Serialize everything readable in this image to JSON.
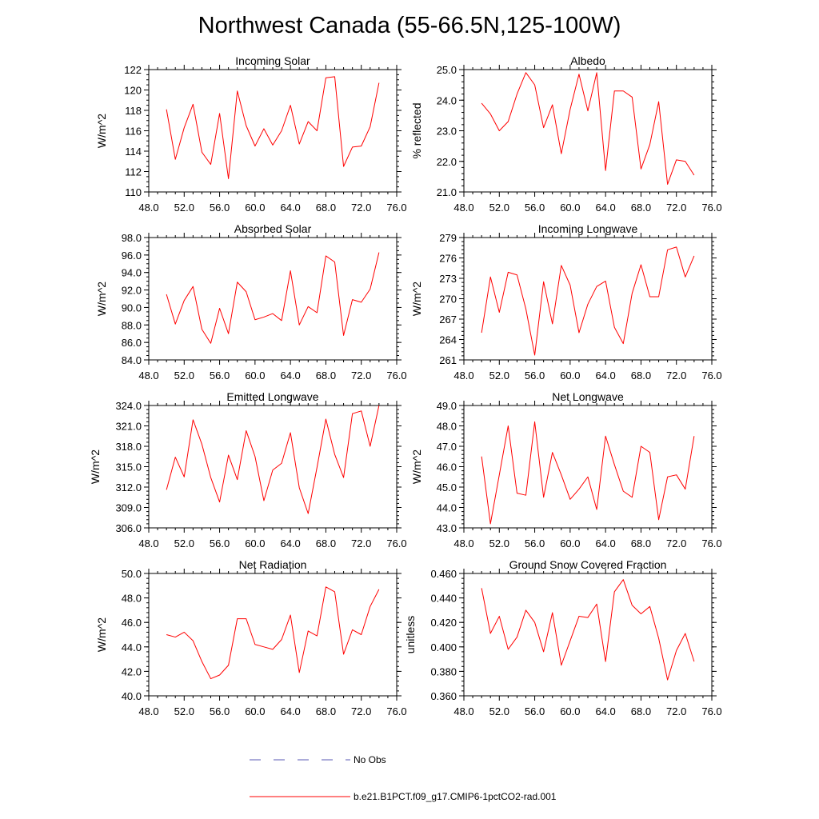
{
  "figure": {
    "title": "Northwest Canada (55-66.5N,125-100W)"
  },
  "legend": {
    "items": [
      {
        "label": "No Obs",
        "color": "#5a5ab4",
        "dash": "dashed"
      },
      {
        "label": "b.e21.B1PCT.f09_g17.CMIP6-1pctCO2-rad.001",
        "color": "#ff0000",
        "dash": "solid"
      }
    ]
  },
  "chart_data": [
    {
      "type": "line",
      "title": "Incoming Solar",
      "ylabel": "W/m^2",
      "xlim": [
        48,
        76
      ],
      "ylim": [
        110,
        122
      ],
      "xticks": [
        "48.0",
        "52.0",
        "56.0",
        "60.0",
        "64.0",
        "68.0",
        "72.0",
        "76.0"
      ],
      "yticks": [
        110,
        112,
        114,
        116,
        118,
        120,
        122
      ],
      "ytick_labels": [
        "110",
        "112",
        "114",
        "116",
        "118",
        "120",
        "122"
      ],
      "ytick_step": 0.5,
      "x": [
        50,
        51,
        52,
        53,
        54,
        55,
        56,
        57,
        58,
        59,
        60,
        61,
        62,
        63,
        64,
        65,
        66,
        67,
        68,
        69,
        70,
        71,
        72,
        73,
        74
      ],
      "series": [
        {
          "name": "b.e21.B1PCT.f09_g17.CMIP6-1pctCO2-rad.001",
          "color": "#ff0000",
          "values": [
            118.1,
            113.2,
            116.3,
            118.6,
            113.9,
            112.7,
            117.7,
            111.3,
            119.9,
            116.5,
            114.5,
            116.2,
            114.6,
            116.0,
            118.5,
            114.7,
            116.9,
            116.0,
            121.2,
            121.3,
            112.5,
            114.4,
            114.5,
            116.4,
            120.7
          ]
        }
      ]
    },
    {
      "type": "line",
      "title": "Albedo",
      "ylabel": "% reflected",
      "xlim": [
        48,
        76
      ],
      "ylim": [
        21.0,
        25.0
      ],
      "xticks": [
        "48.0",
        "52.0",
        "56.0",
        "60.0",
        "64.0",
        "68.0",
        "72.0",
        "76.0"
      ],
      "yticks": [
        21.0,
        22.0,
        23.0,
        24.0,
        25.0
      ],
      "ytick_labels": [
        "21.0",
        "22.0",
        "23.0",
        "24.0",
        "25.0"
      ],
      "ytick_step": 0.2,
      "x": [
        50,
        51,
        52,
        53,
        54,
        55,
        56,
        57,
        58,
        59,
        60,
        61,
        62,
        63,
        64,
        65,
        66,
        67,
        68,
        69,
        70,
        71,
        72,
        73,
        74
      ],
      "series": [
        {
          "name": "b.e21.B1PCT.f09_g17.CMIP6-1pctCO2-rad.001",
          "color": "#ff0000",
          "values": [
            23.9,
            23.55,
            23.0,
            23.3,
            24.2,
            24.9,
            24.5,
            23.1,
            23.85,
            22.25,
            23.7,
            24.85,
            23.65,
            24.9,
            21.7,
            24.3,
            24.3,
            24.1,
            21.75,
            22.55,
            23.95,
            21.25,
            22.05,
            22.0,
            21.55
          ]
        }
      ]
    },
    {
      "type": "line",
      "title": "Absorbed Solar",
      "ylabel": "W/m^2",
      "xlim": [
        48,
        76
      ],
      "ylim": [
        84.0,
        98.0
      ],
      "xticks": [
        "48.0",
        "52.0",
        "56.0",
        "60.0",
        "64.0",
        "68.0",
        "72.0",
        "76.0"
      ],
      "yticks": [
        84.0,
        86.0,
        88.0,
        90.0,
        92.0,
        94.0,
        96.0,
        98.0
      ],
      "ytick_labels": [
        "84.0",
        "86.0",
        "88.0",
        "90.0",
        "92.0",
        "94.0",
        "96.0",
        "98.0"
      ],
      "ytick_step": 0.5,
      "x": [
        50,
        51,
        52,
        53,
        54,
        55,
        56,
        57,
        58,
        59,
        60,
        61,
        62,
        63,
        64,
        65,
        66,
        67,
        68,
        69,
        70,
        71,
        72,
        73,
        74
      ],
      "series": [
        {
          "name": "b.e21.B1PCT.f09_g17.CMIP6-1pctCO2-rad.001",
          "color": "#ff0000",
          "values": [
            91.5,
            88.1,
            90.8,
            92.4,
            87.5,
            85.9,
            89.9,
            87.0,
            92.9,
            91.8,
            88.6,
            88.9,
            89.3,
            88.5,
            94.2,
            88.0,
            90.1,
            89.4,
            95.9,
            95.2,
            86.8,
            90.9,
            90.6,
            92.1,
            96.3
          ]
        }
      ]
    },
    {
      "type": "line",
      "title": "Incoming Longwave",
      "ylabel": "W/m^2",
      "xlim": [
        48,
        76
      ],
      "ylim": [
        261,
        279
      ],
      "xticks": [
        "48.0",
        "52.0",
        "56.0",
        "60.0",
        "64.0",
        "68.0",
        "72.0",
        "76.0"
      ],
      "yticks": [
        261,
        264,
        267,
        270,
        273,
        276,
        279
      ],
      "ytick_labels": [
        "261",
        "264",
        "267",
        "270",
        "273",
        "276",
        "279"
      ],
      "ytick_step": 0.6,
      "x": [
        50,
        51,
        52,
        53,
        54,
        55,
        56,
        57,
        58,
        59,
        60,
        61,
        62,
        63,
        64,
        65,
        66,
        67,
        68,
        69,
        70,
        71,
        72,
        73,
        74
      ],
      "series": [
        {
          "name": "b.e21.B1PCT.f09_g17.CMIP6-1pctCO2-rad.001",
          "color": "#ff0000",
          "values": [
            265.0,
            273.2,
            268.0,
            273.9,
            273.5,
            268.5,
            261.7,
            272.5,
            266.3,
            274.9,
            272.0,
            265.0,
            269.2,
            271.8,
            272.6,
            265.8,
            263.4,
            270.8,
            275.0,
            270.3,
            270.3,
            277.2,
            277.6,
            273.2,
            276.3
          ]
        }
      ]
    },
    {
      "type": "line",
      "title": "Emitted Longwave",
      "ylabel": "W/m^2",
      "xlim": [
        48,
        76
      ],
      "ylim": [
        306.0,
        324.0
      ],
      "xticks": [
        "48.0",
        "52.0",
        "56.0",
        "60.0",
        "64.0",
        "68.0",
        "72.0",
        "76.0"
      ],
      "yticks": [
        306.0,
        309.0,
        312.0,
        315.0,
        318.0,
        321.0,
        324.0
      ],
      "ytick_labels": [
        "306.0",
        "309.0",
        "312.0",
        "315.0",
        "318.0",
        "321.0",
        "324.0"
      ],
      "ytick_step": 0.6,
      "x": [
        50,
        51,
        52,
        53,
        54,
        55,
        56,
        57,
        58,
        59,
        60,
        61,
        62,
        63,
        64,
        65,
        66,
        67,
        68,
        69,
        70,
        71,
        72,
        73,
        74
      ],
      "series": [
        {
          "name": "b.e21.B1PCT.f09_g17.CMIP6-1pctCO2-rad.001",
          "color": "#ff0000",
          "values": [
            311.6,
            316.4,
            313.5,
            321.9,
            318.3,
            313.4,
            309.8,
            316.7,
            313.1,
            320.3,
            316.5,
            310.0,
            314.5,
            315.5,
            320.0,
            311.9,
            308.1,
            314.9,
            322.0,
            316.8,
            313.4,
            322.8,
            323.2,
            318.0,
            324.0
          ]
        }
      ]
    },
    {
      "type": "line",
      "title": "Net Longwave",
      "ylabel": "W/m^2",
      "xlim": [
        48,
        76
      ],
      "ylim": [
        43.0,
        49.0
      ],
      "xticks": [
        "48.0",
        "52.0",
        "56.0",
        "60.0",
        "64.0",
        "68.0",
        "72.0",
        "76.0"
      ],
      "yticks": [
        43.0,
        44.0,
        45.0,
        46.0,
        47.0,
        48.0,
        49.0
      ],
      "ytick_labels": [
        "43.0",
        "44.0",
        "45.0",
        "46.0",
        "47.0",
        "48.0",
        "49.0"
      ],
      "ytick_step": 0.2,
      "x": [
        50,
        51,
        52,
        53,
        54,
        55,
        56,
        57,
        58,
        59,
        60,
        61,
        62,
        63,
        64,
        65,
        66,
        67,
        68,
        69,
        70,
        71,
        72,
        73,
        74
      ],
      "series": [
        {
          "name": "b.e21.B1PCT.f09_g17.CMIP6-1pctCO2-rad.001",
          "color": "#ff0000",
          "values": [
            46.5,
            43.2,
            45.6,
            48.0,
            44.7,
            44.6,
            48.2,
            44.5,
            46.7,
            45.6,
            44.4,
            44.9,
            45.5,
            43.9,
            47.5,
            46.1,
            44.8,
            44.5,
            47.0,
            46.7,
            43.4,
            45.5,
            45.6,
            44.9,
            47.5
          ]
        }
      ]
    },
    {
      "type": "line",
      "title": "Net Radiation",
      "ylabel": "W/m^2",
      "xlim": [
        48,
        76
      ],
      "ylim": [
        40.0,
        50.0
      ],
      "xticks": [
        "48.0",
        "52.0",
        "56.0",
        "60.0",
        "64.0",
        "68.0",
        "72.0",
        "76.0"
      ],
      "yticks": [
        40.0,
        42.0,
        44.0,
        46.0,
        48.0,
        50.0
      ],
      "ytick_labels": [
        "40.0",
        "42.0",
        "44.0",
        "46.0",
        "48.0",
        "50.0"
      ],
      "ytick_step": 0.4,
      "x": [
        50,
        51,
        52,
        53,
        54,
        55,
        56,
        57,
        58,
        59,
        60,
        61,
        62,
        63,
        64,
        65,
        66,
        67,
        68,
        69,
        70,
        71,
        72,
        73,
        74
      ],
      "series": [
        {
          "name": "b.e21.B1PCT.f09_g17.CMIP6-1pctCO2-rad.001",
          "color": "#ff0000",
          "values": [
            45.0,
            44.8,
            45.2,
            44.5,
            42.8,
            41.4,
            41.7,
            42.5,
            46.3,
            46.3,
            44.2,
            44.0,
            43.8,
            44.6,
            46.6,
            41.9,
            45.3,
            44.9,
            48.9,
            48.5,
            43.4,
            45.4,
            45.0,
            47.3,
            48.7
          ]
        }
      ]
    },
    {
      "type": "line",
      "title": "Ground Snow Covered Fraction",
      "ylabel": "unitless",
      "xlim": [
        48,
        76
      ],
      "ylim": [
        0.36,
        0.46
      ],
      "xticks": [
        "48.0",
        "52.0",
        "56.0",
        "60.0",
        "64.0",
        "68.0",
        "72.0",
        "76.0"
      ],
      "yticks": [
        0.36,
        0.38,
        0.4,
        0.42,
        0.44,
        0.46
      ],
      "ytick_labels": [
        "0.360",
        "0.380",
        "0.400",
        "0.420",
        "0.440",
        "0.460"
      ],
      "ytick_step": 0.004,
      "x": [
        50,
        51,
        52,
        53,
        54,
        55,
        56,
        57,
        58,
        59,
        60,
        61,
        62,
        63,
        64,
        65,
        66,
        67,
        68,
        69,
        70,
        71,
        72,
        73,
        74
      ],
      "series": [
        {
          "name": "b.e21.B1PCT.f09_g17.CMIP6-1pctCO2-rad.001",
          "color": "#ff0000",
          "values": [
            0.448,
            0.411,
            0.425,
            0.398,
            0.408,
            0.43,
            0.42,
            0.396,
            0.428,
            0.385,
            0.405,
            0.425,
            0.424,
            0.435,
            0.388,
            0.445,
            0.455,
            0.434,
            0.427,
            0.433,
            0.407,
            0.373,
            0.397,
            0.411,
            0.388
          ]
        }
      ]
    }
  ]
}
